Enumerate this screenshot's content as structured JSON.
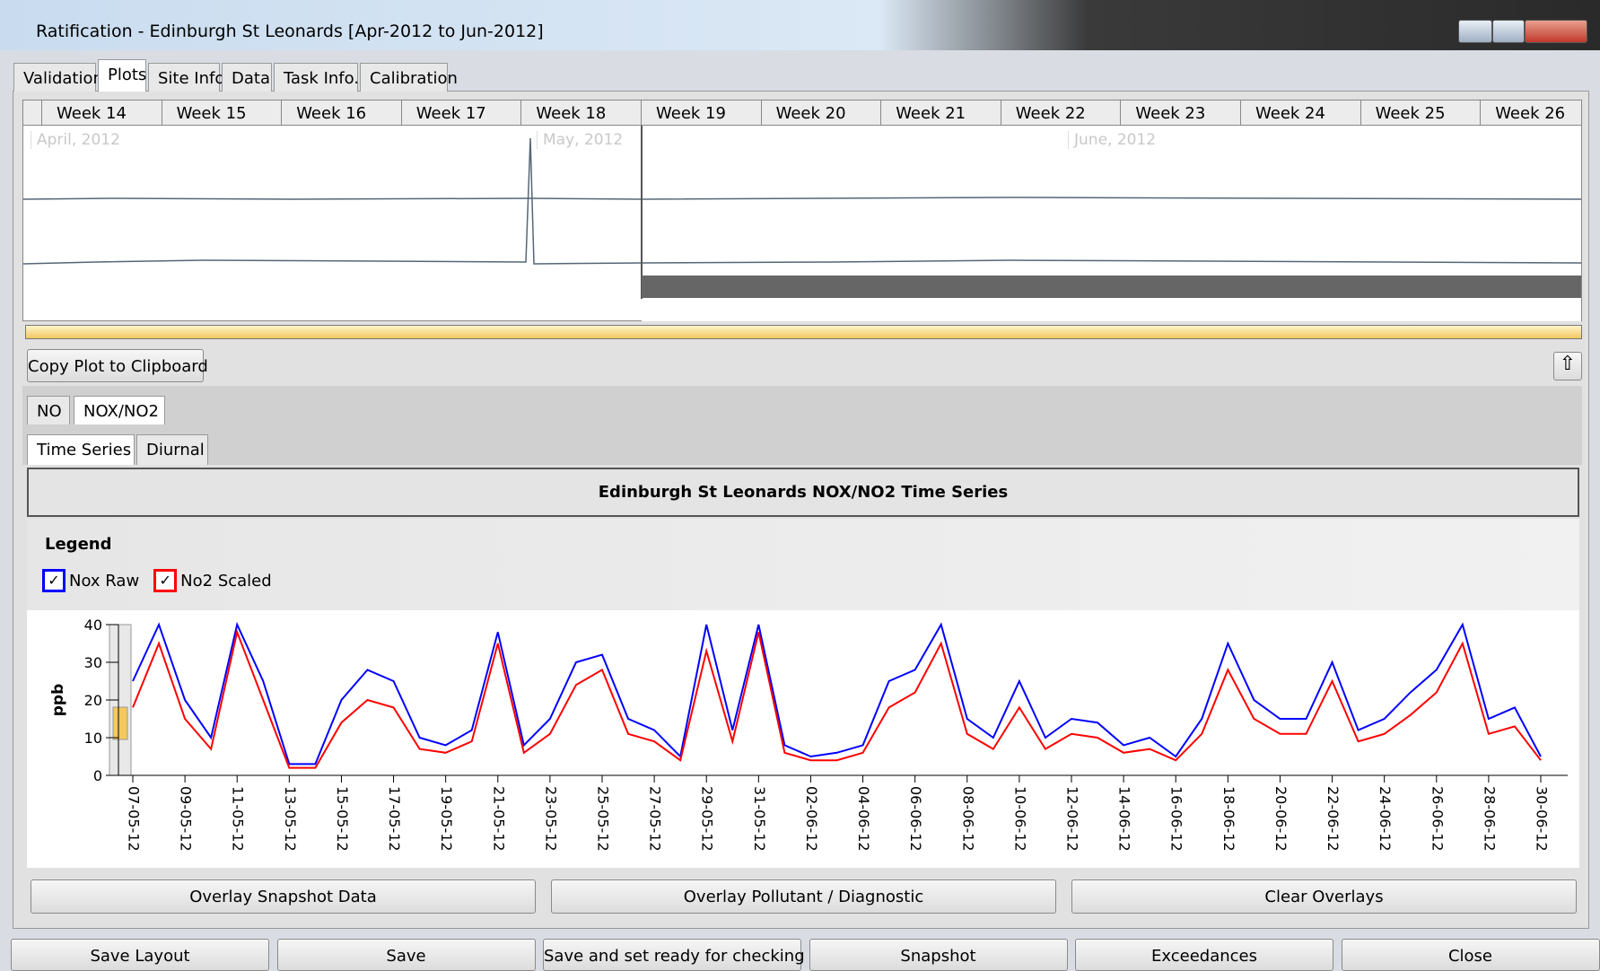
{
  "window": {
    "title": "Ratification - Edinburgh St Leonards [Apr-2012 to Jun-2012]"
  },
  "tabs": [
    "Validation",
    "Plots",
    "Site Info",
    "Data",
    "Task Info.",
    "Calibration"
  ],
  "overview": {
    "weeks": [
      "Week 14",
      "Week 15",
      "Week 16",
      "Week 17",
      "Week 18",
      "Week 19",
      "Week 20",
      "Week 21",
      "Week 22",
      "Week 23",
      "Week 24",
      "Week 25",
      "Week 26"
    ],
    "months": [
      "April, 2012",
      "May, 2012",
      "June, 2012"
    ],
    "range": "07/05/2012 - 30/06/2012"
  },
  "copy_button": "Copy Plot to Clipboard",
  "pollutant_tabs": [
    "NO",
    "NOX/NO2"
  ],
  "view_tabs": [
    "Time Series",
    "Diurnal"
  ],
  "legend_title": "Legend",
  "chart_data": {
    "type": "line",
    "title": "Edinburgh St Leonards NOX/NO2 Time Series",
    "y_label": "ppb",
    "x": [
      "07-05-12",
      "08-05-12",
      "09-05-12",
      "10-05-12",
      "11-05-12",
      "12-05-12",
      "13-05-12",
      "14-05-12",
      "15-05-12",
      "16-05-12",
      "17-05-12",
      "18-05-12",
      "19-05-12",
      "20-05-12",
      "21-05-12",
      "22-05-12",
      "23-05-12",
      "24-05-12",
      "25-05-12",
      "26-05-12",
      "27-05-12",
      "28-05-12",
      "29-05-12",
      "30-05-12",
      "31-05-12",
      "01-06-12",
      "02-06-12",
      "03-06-12",
      "04-06-12",
      "05-06-12",
      "06-06-12",
      "07-06-12",
      "08-06-12",
      "09-06-12",
      "10-06-12",
      "11-06-12",
      "12-06-12",
      "13-06-12",
      "14-06-12",
      "15-06-12",
      "16-06-12",
      "17-06-12",
      "18-06-12",
      "19-06-12",
      "20-06-12",
      "21-06-12",
      "22-06-12",
      "23-06-12",
      "24-06-12",
      "25-06-12",
      "26-06-12",
      "27-06-12",
      "28-06-12",
      "29-06-12",
      "30-06-12"
    ],
    "series": [
      {
        "name": "Nox Raw",
        "color": "#0000ff",
        "values": [
          25,
          40,
          20,
          10,
          40,
          25,
          3,
          3,
          20,
          28,
          25,
          10,
          8,
          12,
          38,
          8,
          15,
          30,
          32,
          15,
          12,
          5,
          40,
          12,
          40,
          8,
          5,
          6,
          8,
          25,
          28,
          40,
          15,
          10,
          25,
          10,
          15,
          14,
          8,
          10,
          5,
          15,
          35,
          20,
          15,
          15,
          30,
          12,
          15,
          22,
          28,
          40,
          15,
          18,
          5
        ]
      },
      {
        "name": "No2 Scaled",
        "color": "#ff0000",
        "values": [
          18,
          35,
          15,
          7,
          38,
          20,
          2,
          2,
          14,
          20,
          18,
          7,
          6,
          9,
          35,
          6,
          11,
          24,
          28,
          11,
          9,
          4,
          33,
          9,
          38,
          6,
          4,
          4,
          6,
          18,
          22,
          35,
          11,
          7,
          18,
          7,
          11,
          10,
          6,
          7,
          4,
          11,
          28,
          15,
          11,
          11,
          25,
          9,
          11,
          16,
          22,
          35,
          11,
          13,
          4
        ]
      }
    ],
    "ylim": [
      0,
      40
    ],
    "yticks": [
      0,
      10,
      20,
      30,
      40
    ],
    "xticks": [
      "07-05-12",
      "09-05-12",
      "11-05-12",
      "13-05-12",
      "15-05-12",
      "17-05-12",
      "19-05-12",
      "21-05-12",
      "23-05-12",
      "25-05-12",
      "27-05-12",
      "29-05-12",
      "31-05-12",
      "02-06-12",
      "04-06-12",
      "06-06-12",
      "08-06-12",
      "10-06-12",
      "12-06-12",
      "14-06-12",
      "16-06-12",
      "18-06-12",
      "20-06-12",
      "22-06-12",
      "24-06-12",
      "26-06-12",
      "28-06-12",
      "30-06-12"
    ]
  },
  "overlay_buttons": [
    "Overlay Snapshot Data",
    "Overlay Pollutant / Diagnostic",
    "Clear Overlays"
  ],
  "bottom_buttons": [
    "Save Layout",
    "Save",
    "Save and set ready for checking",
    "Snapshot",
    "Exceedances",
    "Close"
  ]
}
